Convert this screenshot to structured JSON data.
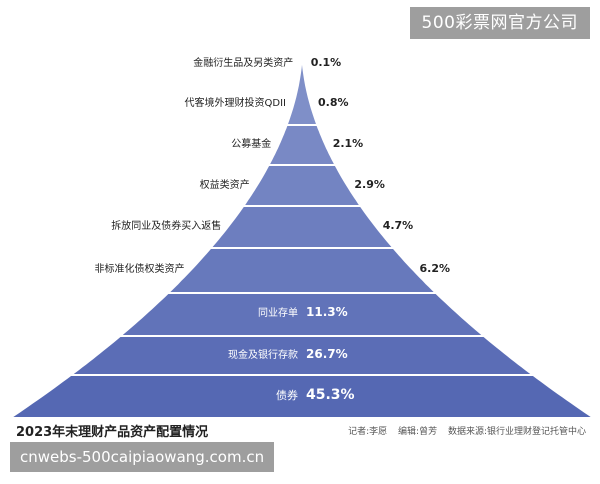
{
  "watermarks": {
    "top": "500彩票网官方公司",
    "bottom": "cnwebs-500caipiaowang.com.cn"
  },
  "footer": {
    "reporter": "记者:李愿",
    "editor": "编辑:曾芳",
    "source": "数据来源:银行业理财登记托管中心"
  },
  "colors": {
    "top_layer": "#7f8fc8",
    "bottom_layer": "#4f62b0",
    "label_dark": "#222222",
    "label_light": "#ffffff"
  },
  "chart_data": {
    "type": "bar",
    "layout": "funnel-pyramid",
    "title": "2023年末理财产品资产配置情况",
    "unit": "%",
    "categories": [
      "金融衍生品及另类资产",
      "代客境外理财投资QDII",
      "公募基金",
      "权益类资产",
      "拆放同业及债券买入返售",
      "非标准化债权类资产",
      "同业存单",
      "现金及银行存款",
      "债券"
    ],
    "values": [
      0.1,
      0.8,
      2.1,
      2.9,
      4.7,
      6.2,
      11.3,
      26.7,
      45.3
    ],
    "value_labels": [
      "0.1%",
      "0.8%",
      "2.1%",
      "2.9%",
      "4.7%",
      "6.2%",
      "11.3%",
      "26.7%",
      "45.3%"
    ]
  }
}
